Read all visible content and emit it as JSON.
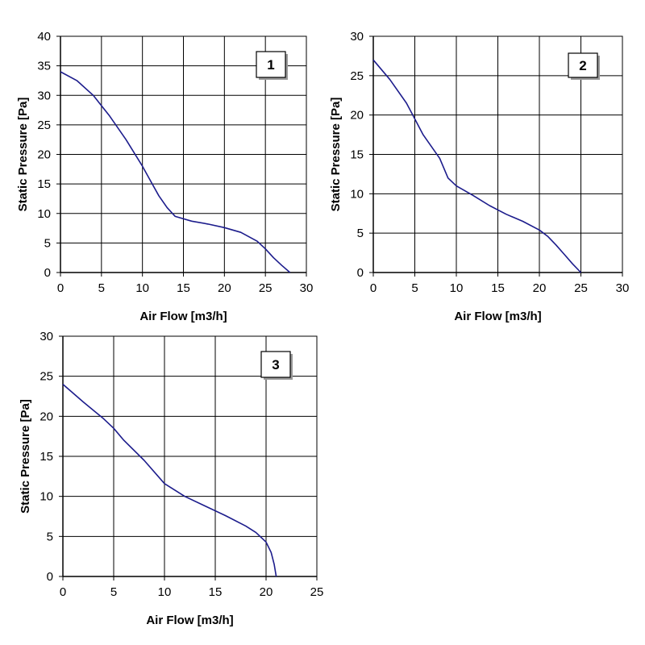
{
  "colors": {
    "curve": "#1c1c8c",
    "grid": "#000000",
    "background": "#ffffff"
  },
  "chart_data": [
    {
      "type": "line",
      "panel_label": "1",
      "xlabel": "Air Flow [m3/h]",
      "ylabel": "Static Pressure [Pa]",
      "xlim": [
        0,
        30
      ],
      "ylim": [
        0,
        40
      ],
      "xticks": [
        0,
        5,
        10,
        15,
        20,
        25,
        30
      ],
      "yticks": [
        0,
        5,
        10,
        15,
        20,
        25,
        30,
        35,
        40
      ],
      "grid": true,
      "series": [
        {
          "x": [
            0,
            2,
            4,
            6,
            8,
            10,
            11,
            12,
            13,
            14,
            16,
            18,
            20,
            22,
            24,
            25,
            26,
            27,
            28
          ],
          "y": [
            34,
            32.5,
            30,
            26.5,
            22.5,
            18,
            15.5,
            13,
            11,
            9.5,
            8.7,
            8.2,
            7.6,
            6.8,
            5.3,
            4,
            2.5,
            1.2,
            0
          ]
        }
      ]
    },
    {
      "type": "line",
      "panel_label": "2",
      "xlabel": "Air Flow [m3/h]",
      "ylabel": "Static Pressure [Pa]",
      "xlim": [
        0,
        30
      ],
      "ylim": [
        0,
        30
      ],
      "xticks": [
        0,
        5,
        10,
        15,
        20,
        25,
        30
      ],
      "yticks": [
        0,
        5,
        10,
        15,
        20,
        25,
        30
      ],
      "grid": true,
      "series": [
        {
          "x": [
            0,
            2,
            4,
            5,
            6,
            8,
            9,
            10,
            12,
            14,
            16,
            18,
            20,
            21,
            22,
            23,
            24,
            25
          ],
          "y": [
            27,
            24.5,
            21.5,
            19.5,
            17.5,
            14.5,
            12,
            11,
            9.8,
            8.5,
            7.4,
            6.5,
            5.4,
            4.6,
            3.5,
            2.3,
            1.1,
            0
          ]
        }
      ]
    },
    {
      "type": "line",
      "panel_label": "3",
      "xlabel": "Air Flow [m3/h]",
      "ylabel": "Static Pressure [Pa]",
      "xlim": [
        0,
        25
      ],
      "ylim": [
        0,
        30
      ],
      "xticks": [
        0,
        5,
        10,
        15,
        20,
        25
      ],
      "yticks": [
        0,
        5,
        10,
        15,
        20,
        25,
        30
      ],
      "grid": true,
      "series": [
        {
          "x": [
            0,
            2,
            4,
            5,
            6,
            8,
            10,
            12,
            14,
            16,
            18,
            19,
            20,
            20.5,
            20.8,
            21
          ],
          "y": [
            24,
            21.8,
            19.7,
            18.5,
            17,
            14.5,
            11.6,
            10,
            8.8,
            7.6,
            6.3,
            5.5,
            4.3,
            3,
            1.5,
            0
          ]
        }
      ]
    }
  ]
}
